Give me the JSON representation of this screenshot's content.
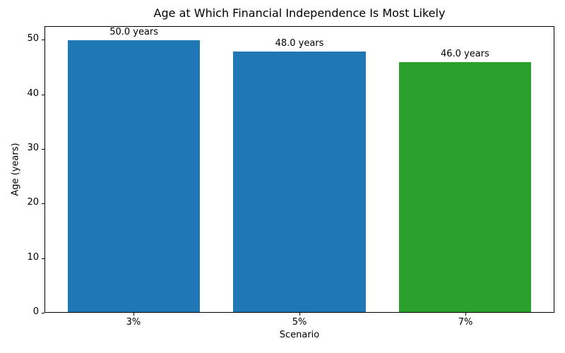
{
  "chart_data": {
    "type": "bar",
    "title": "Age at Which Financial Independence Is Most Likely",
    "xlabel": "Scenario",
    "ylabel": "Age (years)",
    "categories": [
      "3%",
      "5%",
      "7%"
    ],
    "values": [
      50.0,
      48.0,
      46.0
    ],
    "bar_labels": [
      "50.0 years",
      "48.0 years",
      "46.0 years"
    ],
    "bar_colors": [
      "#1f77b4",
      "#1f77b4",
      "#2ca02c"
    ],
    "ylim": [
      0,
      52.5
    ],
    "yticks": [
      0,
      10,
      20,
      30,
      40,
      50
    ],
    "grid": false,
    "legend": null,
    "axis_color": "#000000",
    "background_color": "#ffffff"
  }
}
